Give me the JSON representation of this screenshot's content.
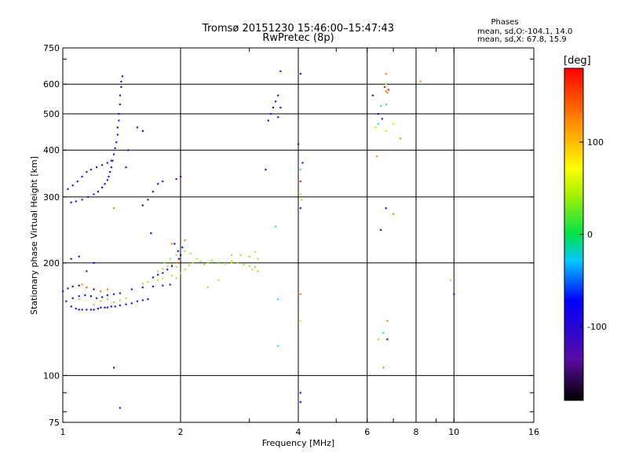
{
  "chart_data": {
    "type": "scatter",
    "title": "Tromsø 20151230 15:46:00–15:47:43",
    "subtitle": "RwPretec (8p)",
    "stats": {
      "heading": "Phases",
      "line1": "mean, sd,O:-104.1, 14.0",
      "line2": "mean, sd,X:  67.8, 15.9"
    },
    "xlabel": "Frequency [MHz]",
    "ylabel": "Stationary phase Virtual Height [km]",
    "x_scale": "log",
    "y_scale": "log",
    "xlim": [
      1,
      16
    ],
    "ylim": [
      75,
      750
    ],
    "x_ticks": [
      1,
      2,
      4,
      6,
      8,
      10,
      16
    ],
    "x_tick_labels": [
      "1",
      "2",
      "4",
      "6",
      "8",
      "10",
      "16"
    ],
    "y_ticks": [
      75,
      100,
      200,
      300,
      400,
      500,
      600,
      750
    ],
    "y_tick_labels": [
      "75",
      "100",
      "200",
      "300",
      "400",
      "500",
      "600",
      "750"
    ],
    "grid_x": [
      2,
      4,
      6,
      8,
      10
    ],
    "grid_y": [
      100,
      200,
      300,
      400,
      500,
      600
    ],
    "colorbar": {
      "label": "[deg]",
      "range": [
        -180,
        180
      ],
      "ticks": [
        100,
        0,
        -100
      ],
      "tick_labels": [
        "100",
        "0",
        "-100"
      ]
    },
    "series": [
      {
        "points": [
          [
            1.05,
            153
          ],
          [
            1.08,
            151
          ],
          [
            1.1,
            150
          ],
          [
            1.12,
            150
          ],
          [
            1.15,
            150
          ],
          [
            1.18,
            150
          ],
          [
            1.2,
            150
          ],
          [
            1.23,
            151
          ],
          [
            1.25,
            152
          ],
          [
            1.28,
            152
          ],
          [
            1.3,
            152
          ],
          [
            1.33,
            153
          ],
          [
            1.36,
            153
          ],
          [
            1.4,
            154
          ],
          [
            1.45,
            155
          ],
          [
            1.5,
            156
          ],
          [
            1.55,
            158
          ],
          [
            1.6,
            159
          ],
          [
            1.65,
            160
          ],
          [
            1.02,
            158
          ],
          [
            1.06,
            161
          ],
          [
            1.1,
            163
          ],
          [
            1.14,
            164
          ],
          [
            1.18,
            163
          ],
          [
            1.22,
            161
          ],
          [
            1.26,
            162
          ],
          [
            1.3,
            164
          ],
          [
            1.35,
            165
          ],
          [
            1.4,
            166
          ],
          [
            1.5,
            170
          ],
          [
            1.6,
            172
          ],
          [
            1.7,
            173
          ],
          [
            1.8,
            174
          ],
          [
            1.88,
            175
          ],
          [
            1.0,
            168
          ],
          [
            1.03,
            171
          ],
          [
            1.06,
            173
          ],
          [
            1.1,
            174
          ],
          [
            1.15,
            172
          ],
          [
            1.2,
            170
          ],
          [
            1.25,
            168
          ],
          [
            1.7,
            183
          ],
          [
            1.75,
            186
          ],
          [
            1.8,
            188
          ],
          [
            1.85,
            192
          ],
          [
            1.9,
            196
          ],
          [
            1.95,
            200
          ],
          [
            1.98,
            205
          ],
          [
            2.0,
            210
          ],
          [
            1.97,
            215
          ],
          [
            2.02,
            220
          ],
          [
            1.93,
            225
          ],
          [
            1.05,
            290
          ],
          [
            1.08,
            292
          ],
          [
            1.12,
            295
          ],
          [
            1.16,
            300
          ],
          [
            1.2,
            305
          ],
          [
            1.23,
            310
          ],
          [
            1.26,
            318
          ],
          [
            1.28,
            325
          ],
          [
            1.3,
            333
          ],
          [
            1.31,
            340
          ],
          [
            1.32,
            350
          ],
          [
            1.33,
            360
          ],
          [
            1.34,
            375
          ],
          [
            1.35,
            390
          ],
          [
            1.36,
            405
          ],
          [
            1.37,
            420
          ],
          [
            1.38,
            440
          ],
          [
            1.38,
            460
          ],
          [
            1.39,
            480
          ],
          [
            1.39,
            500
          ],
          [
            1.4,
            530
          ],
          [
            1.4,
            560
          ],
          [
            1.41,
            590
          ],
          [
            1.41,
            610
          ],
          [
            1.42,
            630
          ],
          [
            1.03,
            315
          ],
          [
            1.06,
            322
          ],
          [
            1.09,
            330
          ],
          [
            1.12,
            340
          ],
          [
            1.15,
            350
          ],
          [
            1.18,
            355
          ],
          [
            1.22,
            360
          ],
          [
            1.26,
            365
          ],
          [
            1.3,
            370
          ],
          [
            1.33,
            375
          ],
          [
            1.6,
            285
          ],
          [
            1.65,
            295
          ],
          [
            1.7,
            310
          ],
          [
            1.75,
            325
          ],
          [
            1.8,
            330
          ],
          [
            1.95,
            335
          ],
          [
            2.0,
            340
          ],
          [
            3.35,
            480
          ],
          [
            3.4,
            500
          ],
          [
            3.45,
            520
          ],
          [
            3.5,
            540
          ],
          [
            3.55,
            560
          ],
          [
            3.6,
            520
          ],
          [
            3.55,
            490
          ],
          [
            3.6,
            650
          ],
          [
            4.05,
            640
          ],
          [
            4.05,
            90
          ],
          [
            4.05,
            85
          ],
          [
            1.05,
            205
          ],
          [
            1.1,
            208
          ],
          [
            1.15,
            190
          ],
          [
            1.2,
            200
          ],
          [
            1.35,
            105
          ],
          [
            1.4,
            82
          ],
          [
            4.0,
            415
          ],
          [
            4.1,
            370
          ],
          [
            3.3,
            355
          ],
          [
            4.05,
            280
          ],
          [
            6.2,
            560
          ],
          [
            6.4,
            500
          ],
          [
            6.55,
            485
          ],
          [
            6.7,
            280
          ],
          [
            6.75,
            125
          ],
          [
            6.5,
            245
          ],
          [
            10.0,
            165
          ],
          [
            1.55,
            460
          ],
          [
            1.6,
            450
          ],
          [
            1.47,
            400
          ],
          [
            1.45,
            360
          ],
          [
            1.68,
            240
          ]
        ],
        "color": "#1a1ae6"
      },
      {
        "points": [
          [
            1.75,
            190
          ],
          [
            1.8,
            193
          ],
          [
            1.85,
            196
          ],
          [
            1.9,
            198
          ],
          [
            1.95,
            195
          ],
          [
            2.05,
            192
          ],
          [
            2.1,
            197
          ],
          [
            2.15,
            200
          ],
          [
            2.2,
            205
          ],
          [
            2.25,
            202
          ],
          [
            2.3,
            198
          ],
          [
            2.35,
            200
          ],
          [
            2.4,
            203
          ],
          [
            2.5,
            201
          ],
          [
            2.6,
            199
          ],
          [
            2.7,
            202
          ],
          [
            2.8,
            200
          ],
          [
            2.9,
            198
          ],
          [
            3.0,
            196
          ],
          [
            3.05,
            192
          ],
          [
            3.1,
            195
          ],
          [
            3.15,
            190
          ],
          [
            2.7,
            210
          ],
          [
            2.85,
            210
          ],
          [
            3.0,
            208
          ],
          [
            3.1,
            214
          ],
          [
            3.15,
            205
          ],
          [
            1.75,
            180
          ],
          [
            1.8,
            182
          ],
          [
            1.9,
            185
          ],
          [
            1.95,
            182
          ],
          [
            2.0,
            188
          ],
          [
            1.82,
            200
          ],
          [
            1.88,
            205
          ],
          [
            1.95,
            210
          ],
          [
            2.05,
            215
          ],
          [
            2.12,
            212
          ],
          [
            1.6,
            176
          ],
          [
            1.65,
            178
          ],
          [
            1.2,
            155
          ],
          [
            1.25,
            158
          ],
          [
            1.3,
            160
          ],
          [
            1.35,
            157
          ],
          [
            1.4,
            159
          ],
          [
            1.45,
            161
          ],
          [
            1.1,
            160
          ],
          [
            2.5,
            180
          ],
          [
            2.35,
            172
          ],
          [
            4.05,
            305
          ],
          [
            4.08,
            295
          ],
          [
            6.4,
            125
          ],
          [
            6.7,
            600
          ],
          [
            9.8,
            180
          ]
        ],
        "color": "#99ee33"
      },
      {
        "points": [
          [
            1.12,
            175
          ],
          [
            1.15,
            172
          ],
          [
            1.25,
            168
          ],
          [
            1.3,
            170
          ],
          [
            1.35,
            280
          ],
          [
            1.9,
            225
          ],
          [
            1.95,
            200
          ],
          [
            2.05,
            230
          ],
          [
            6.35,
            385
          ],
          [
            6.7,
            575
          ],
          [
            6.75,
            140
          ],
          [
            7.3,
            430
          ],
          [
            8.2,
            610
          ],
          [
            7.0,
            270
          ],
          [
            6.75,
            570
          ],
          [
            6.6,
            105
          ],
          [
            4.05,
            165
          ],
          [
            6.7,
            640
          ]
        ],
        "color": "#ff8800"
      },
      {
        "points": [
          [
            4.05,
            355
          ],
          [
            6.5,
            525
          ],
          [
            6.7,
            530
          ],
          [
            6.4,
            470
          ],
          [
            3.5,
            250
          ],
          [
            3.55,
            160
          ],
          [
            3.55,
            120
          ],
          [
            6.6,
            130
          ]
        ],
        "color": "#33ddee"
      },
      {
        "points": [
          [
            4.05,
            330
          ],
          [
            6.65,
            590
          ],
          [
            6.8,
            580
          ]
        ],
        "color": "#ee2200"
      },
      {
        "points": [
          [
            4.05,
            140
          ],
          [
            6.3,
            460
          ],
          [
            6.7,
            450
          ],
          [
            7.0,
            470
          ],
          [
            2.7,
            200
          ]
        ],
        "color": "#e8e800"
      }
    ]
  }
}
